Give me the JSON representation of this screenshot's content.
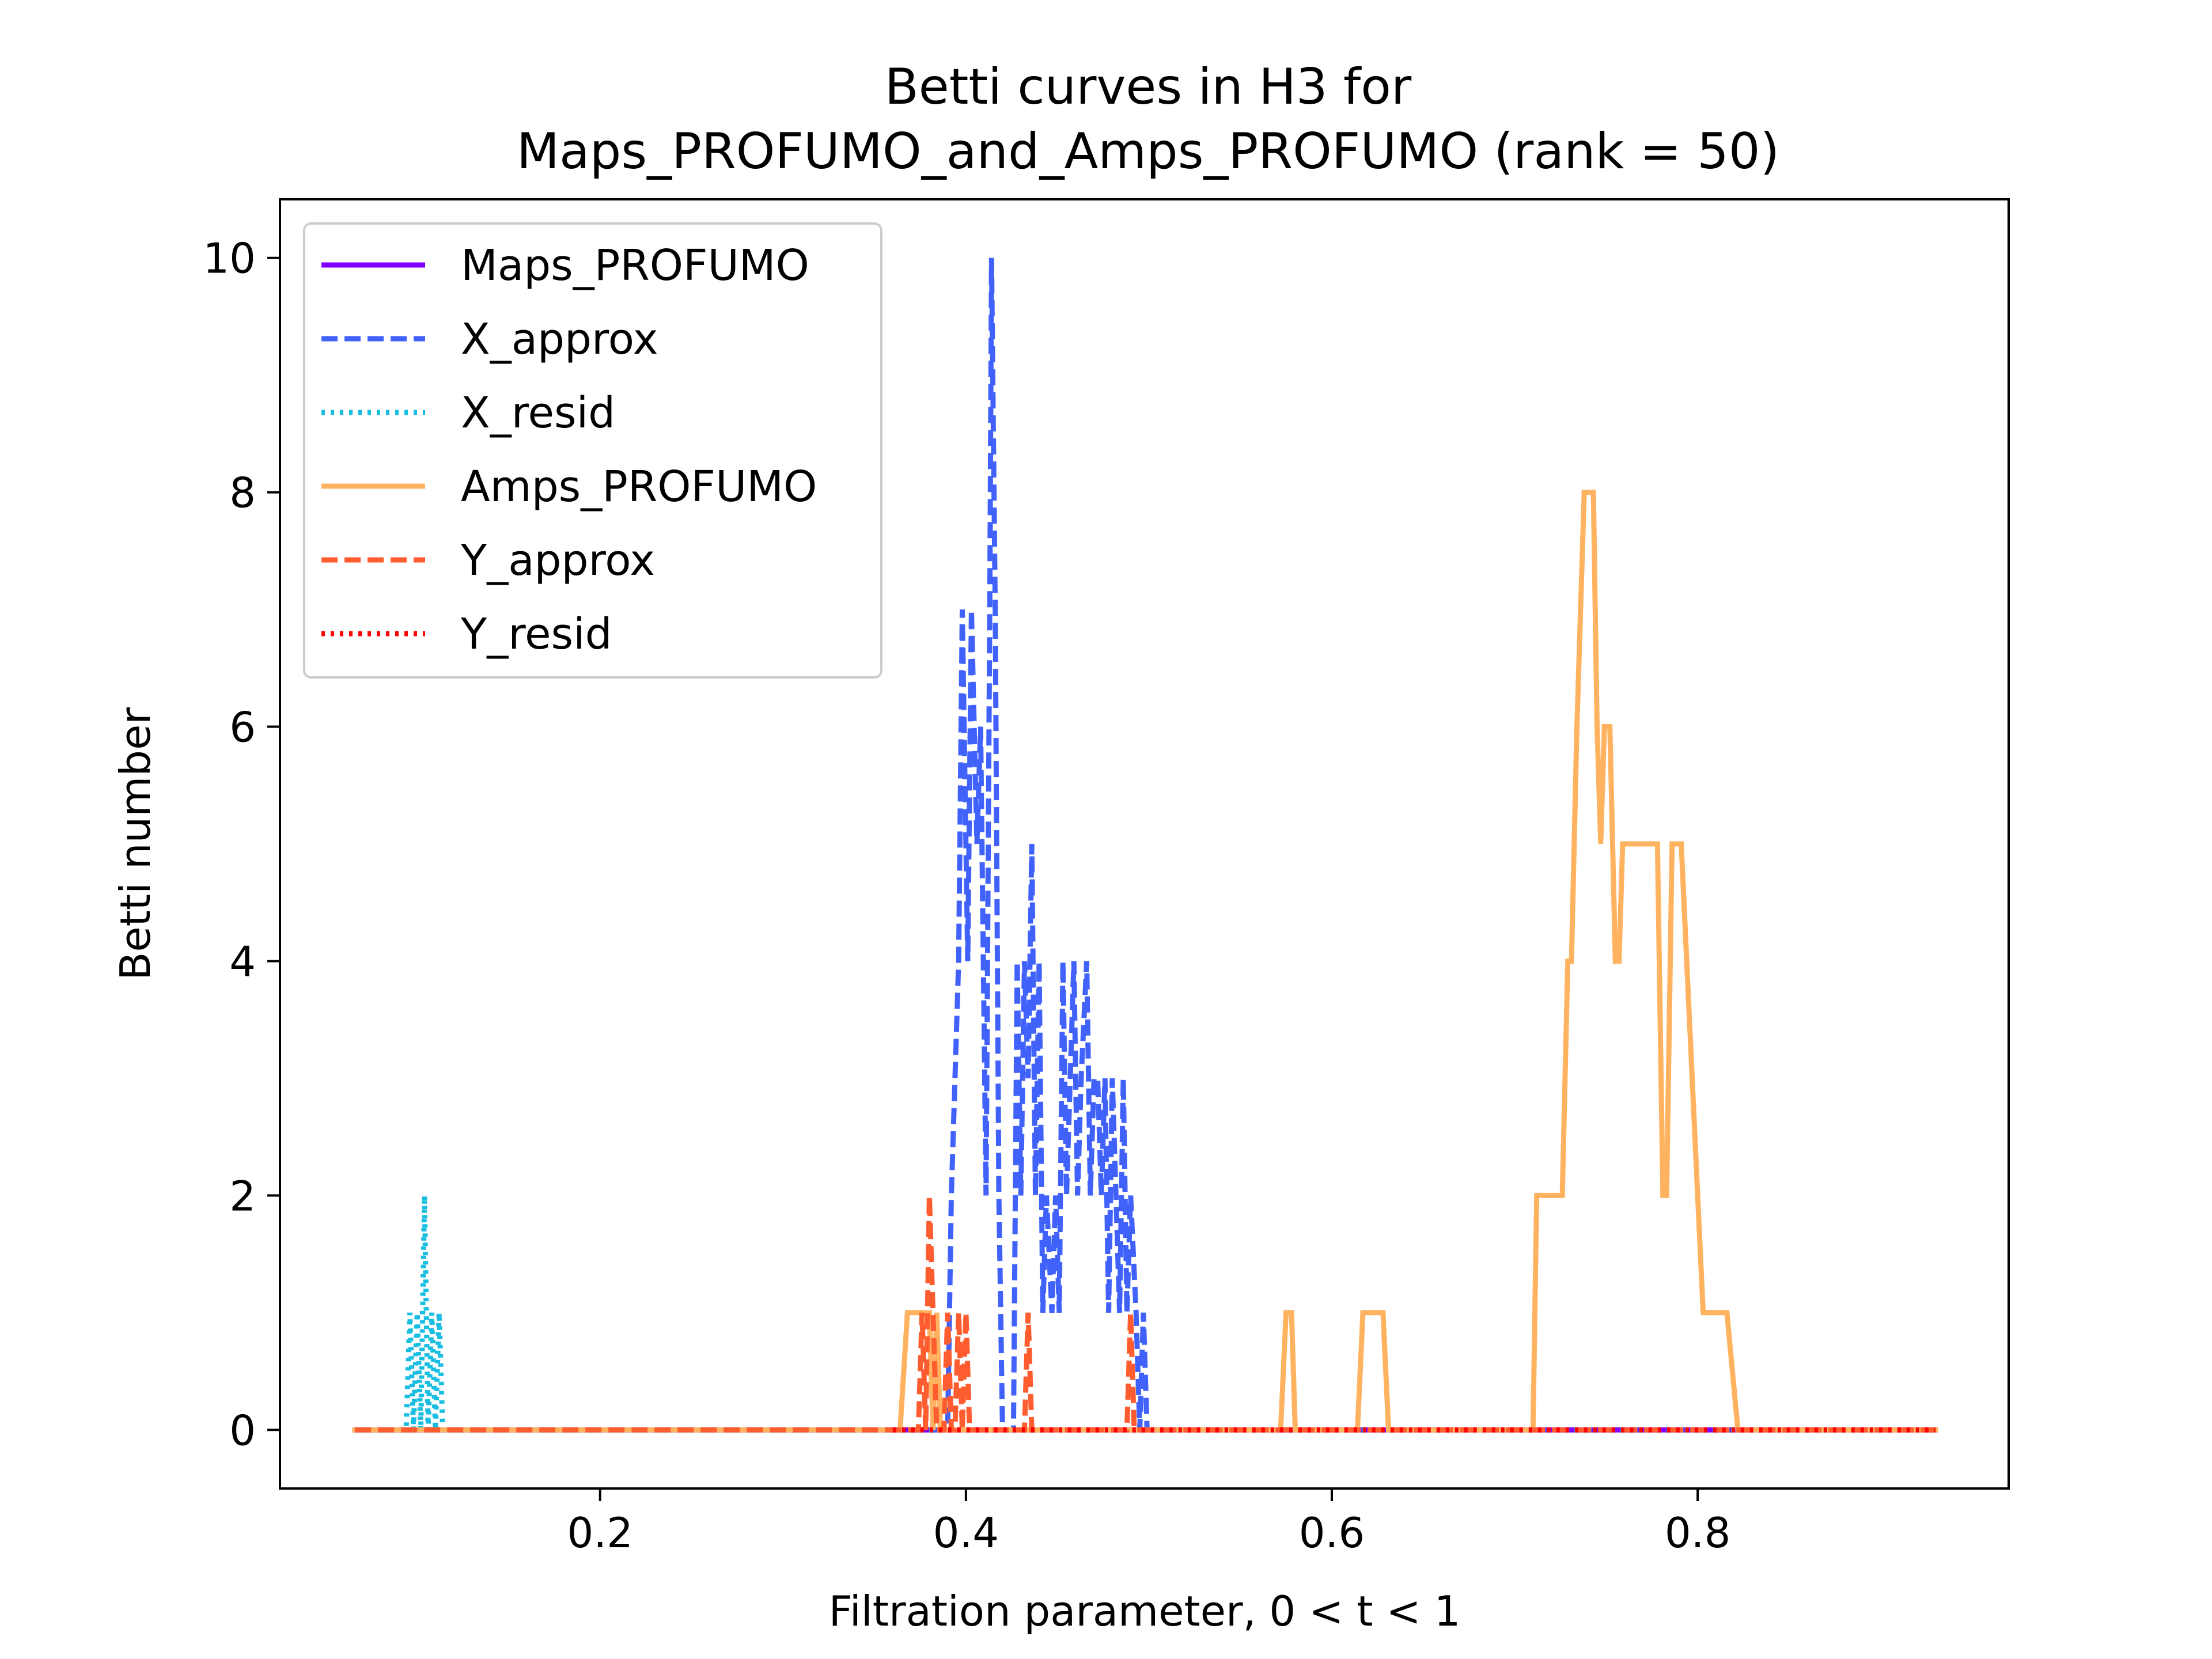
{
  "chart_data": {
    "type": "line",
    "title": "Betti curves in H3 for",
    "subtitle": "Maps_PROFUMO_and_Amps_PROFUMO (rank = 50)",
    "xlabel": "Filtration parameter, 0 < t < 1",
    "ylabel": "Betti number",
    "xlim": [
      0.025,
      0.97
    ],
    "ylim": [
      -0.5,
      10.5
    ],
    "xticks": [
      0.2,
      0.4,
      0.6,
      0.8
    ],
    "xtick_labels": [
      "0.2",
      "0.4",
      "0.6",
      "0.8"
    ],
    "yticks": [
      0,
      2,
      4,
      6,
      8,
      10
    ],
    "ytick_labels": [
      "0",
      "2",
      "4",
      "6",
      "8",
      "10"
    ],
    "grid": false,
    "legend_position": "upper-left",
    "series": [
      {
        "name": "Maps_PROFUMO",
        "color": "#8000ff",
        "style": "solid",
        "x": [
          0.066,
          0.93
        ],
        "y": [
          0,
          0
        ]
      },
      {
        "name": "X_approx",
        "color": "#4062fa",
        "style": "dashed",
        "x": [
          0.066,
          0.39,
          0.392,
          0.396,
          0.398,
          0.401,
          0.403,
          0.406,
          0.408,
          0.411,
          0.413,
          0.414,
          0.416,
          0.418,
          0.42,
          0.426,
          0.428,
          0.43,
          0.432,
          0.434,
          0.436,
          0.438,
          0.44,
          0.442,
          0.444,
          0.447,
          0.449,
          0.451,
          0.453,
          0.455,
          0.457,
          0.459,
          0.461,
          0.463,
          0.466,
          0.468,
          0.47,
          0.472,
          0.474,
          0.476,
          0.478,
          0.48,
          0.482,
          0.484,
          0.486,
          0.488,
          0.49,
          0.493,
          0.495,
          0.497,
          0.499,
          0.502,
          0.93
        ],
        "y": [
          0,
          0,
          2,
          4,
          7,
          4,
          7,
          5,
          6,
          2,
          7,
          10,
          7,
          2,
          0,
          0,
          4,
          2,
          4,
          3,
          5,
          2,
          4,
          1,
          2,
          1,
          2,
          1,
          4,
          2,
          3,
          4,
          2,
          3,
          4,
          2,
          3,
          3,
          2,
          3,
          1,
          3,
          2,
          1,
          3,
          1,
          2,
          1,
          0,
          1,
          0,
          0,
          0
        ]
      },
      {
        "name": "X_resid",
        "color": "#17bee1",
        "style": "dotted",
        "x": [
          0.066,
          0.094,
          0.096,
          0.098,
          0.1,
          0.102,
          0.104,
          0.106,
          0.108,
          0.11,
          0.112,
          0.114,
          0.93
        ],
        "y": [
          0,
          0,
          1,
          0,
          1,
          0,
          2,
          0,
          1,
          0,
          1,
          0,
          0
        ]
      },
      {
        "name": "Amps_PROFUMO",
        "color": "#ffb360",
        "style": "solid",
        "x": [
          0.066,
          0.364,
          0.368,
          0.38,
          0.382,
          0.384,
          0.386,
          0.388,
          0.572,
          0.575,
          0.578,
          0.58,
          0.614,
          0.617,
          0.628,
          0.631,
          0.71,
          0.712,
          0.726,
          0.729,
          0.731,
          0.734,
          0.738,
          0.743,
          0.745,
          0.747,
          0.749,
          0.752,
          0.755,
          0.757,
          0.759,
          0.762,
          0.776,
          0.778,
          0.781,
          0.783,
          0.786,
          0.789,
          0.791,
          0.794,
          0.797,
          0.8,
          0.803,
          0.814,
          0.816,
          0.822,
          0.93
        ],
        "y": [
          0,
          0,
          1,
          1,
          0,
          1,
          0,
          0,
          0,
          1,
          1,
          0,
          0,
          1,
          1,
          0,
          0,
          2,
          2,
          4,
          4,
          6,
          8,
          8,
          6,
          5,
          6,
          6,
          4,
          4,
          5,
          5,
          5,
          5,
          2,
          2,
          5,
          5,
          5,
          4,
          3,
          2,
          1,
          1,
          1,
          0,
          0
        ]
      },
      {
        "name": "Y_approx",
        "color": "#ff5d30",
        "style": "dashed",
        "x": [
          0.066,
          0.374,
          0.376,
          0.378,
          0.38,
          0.382,
          0.384,
          0.386,
          0.388,
          0.39,
          0.392,
          0.394,
          0.396,
          0.398,
          0.4,
          0.402,
          0.404,
          0.432,
          0.434,
          0.436,
          0.438,
          0.488,
          0.49,
          0.492,
          0.494,
          0.93
        ],
        "y": [
          0,
          0,
          1,
          0,
          2,
          1,
          0,
          0,
          0,
          1,
          0,
          0,
          1,
          0,
          1,
          0,
          0,
          0,
          1,
          0,
          0,
          0,
          1,
          0,
          0,
          0
        ]
      },
      {
        "name": "Y_resid",
        "color": "#ff0000",
        "style": "dotted",
        "x": [
          0.36,
          0.93
        ],
        "y": [
          0,
          0
        ]
      }
    ]
  }
}
